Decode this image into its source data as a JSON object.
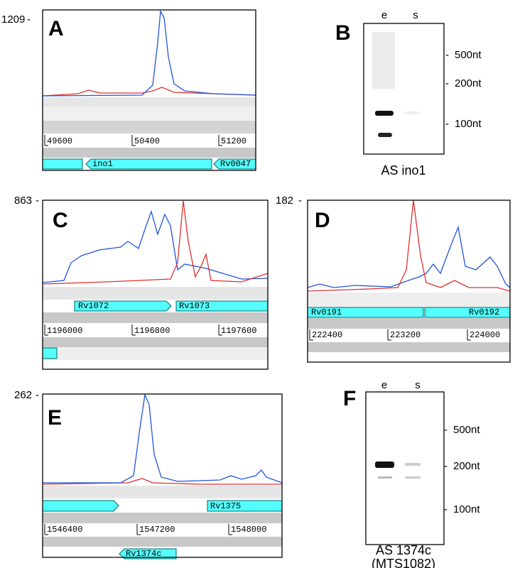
{
  "panels": [
    {
      "letter": "A",
      "ymax": "1209",
      "coords": [
        "49600",
        "50400",
        "51200"
      ],
      "genes": [
        "ino1",
        "Rv0047"
      ]
    },
    {
      "letter": "B",
      "lanes": [
        "e",
        "s"
      ],
      "markers": [
        "500nt",
        "200nt",
        "100nt"
      ],
      "caption": "AS ino1"
    },
    {
      "letter": "C",
      "ymax": "863",
      "coords": [
        "1196000",
        "1196800",
        "1197600"
      ],
      "genes": [
        "Rv1072",
        "Rv1073"
      ]
    },
    {
      "letter": "D",
      "ymax": "182",
      "coords": [
        "222400",
        "223200",
        "224000"
      ],
      "genes": [
        "Rv0191",
        "Rv0192"
      ]
    },
    {
      "letter": "E",
      "ymax": "262",
      "coords": [
        "1546400",
        "1547200",
        "1548000"
      ],
      "genes": [
        "Rv1375",
        "Rv1374c"
      ]
    },
    {
      "letter": "F",
      "lanes": [
        "e",
        "s"
      ],
      "markers": [
        "500nt",
        "200nt",
        "100nt"
      ],
      "caption": [
        "AS 1374c",
        "(MTS1082)"
      ]
    }
  ]
}
